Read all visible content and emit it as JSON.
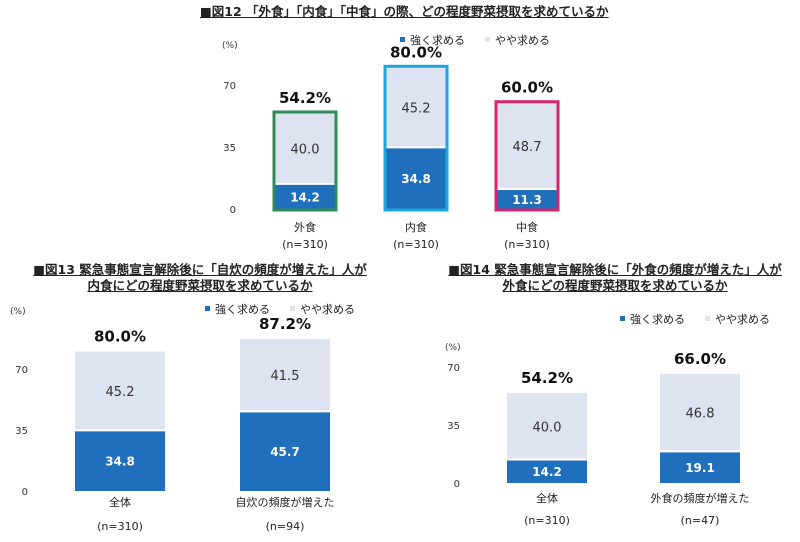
{
  "colors": {
    "strong": "#1f6fbd",
    "somewhat": "#dde3f1"
  },
  "chart_data": [
    {
      "type": "bar",
      "stacked": true,
      "title": "■図12 「外食」「内食」「中食」の際、どの程度野菜摂取を求めているか",
      "ylabel": "(%)",
      "yticks": [
        0,
        35,
        70
      ],
      "ylim": [
        0,
        70
      ],
      "legend": [
        "強く求める",
        "やや求める"
      ],
      "legend_position": "top-right",
      "categories": [
        "外食",
        "内食",
        "中食"
      ],
      "n_labels": [
        "(n=310)",
        "(n=310)",
        "(n=310)"
      ],
      "series": [
        {
          "name": "強く求める",
          "values": [
            14.2,
            34.8,
            11.3
          ]
        },
        {
          "name": "やや求める",
          "values": [
            40.0,
            45.2,
            48.7
          ]
        }
      ],
      "totals": [
        "54.2%",
        "80.0%",
        "60.0%"
      ],
      "outline_colors": [
        "#2e8b57",
        "#1aa7e0",
        "#d6246e"
      ]
    },
    {
      "type": "bar",
      "stacked": true,
      "title": [
        "■図13 緊急事態宣言解除後に「自炊の頻度が増えた」人が",
        "内食にどの程度野菜摂取を求めているか"
      ],
      "ylabel": "(%)",
      "yticks": [
        0,
        35,
        70
      ],
      "ylim": [
        0,
        70
      ],
      "legend": [
        "強く求める",
        "やや求める"
      ],
      "legend_position": "top-right",
      "categories": [
        "全体",
        "自炊の頻度が増えた"
      ],
      "n_labels": [
        "(n=310)",
        "(n=94)"
      ],
      "series": [
        {
          "name": "強く求める",
          "values": [
            34.8,
            45.7
          ]
        },
        {
          "name": "やや求める",
          "values": [
            45.2,
            41.5
          ]
        }
      ],
      "totals": [
        "80.0%",
        "87.2%"
      ]
    },
    {
      "type": "bar",
      "stacked": true,
      "title": [
        "■図14 緊急事態宣言解除後に「外食の頻度が増えた」人が",
        "外食にどの程度野菜摂取を求めているか"
      ],
      "ylabel": "(%)",
      "yticks": [
        0,
        35,
        70
      ],
      "ylim": [
        0,
        70
      ],
      "legend": [
        "強く求める",
        "やや求める"
      ],
      "legend_position": "top-right",
      "categories": [
        "全体",
        "外食の頻度が増えた"
      ],
      "n_labels": [
        "(n=310)",
        "(n=47)"
      ],
      "series": [
        {
          "name": "強く求める",
          "values": [
            14.2,
            19.1
          ]
        },
        {
          "name": "やや求める",
          "values": [
            40.0,
            46.8
          ]
        }
      ],
      "totals": [
        "54.2%",
        "66.0%"
      ]
    }
  ]
}
